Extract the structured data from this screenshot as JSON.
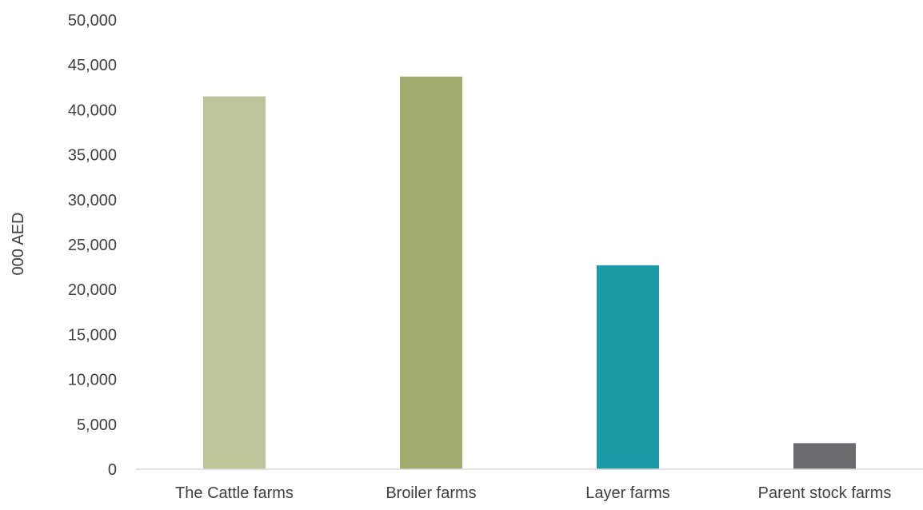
{
  "chart_data": {
    "type": "bar",
    "title": "",
    "xlabel": "",
    "ylabel": "000 AED",
    "categories": [
      "The Cattle farms",
      "Broiler farms",
      "Layer farms",
      "Parent stock farms"
    ],
    "values": [
      41500,
      43700,
      22700,
      2900
    ],
    "colors": [
      "#bec49a",
      "#a2ab6f",
      "#1b9aa6",
      "#6b6b6e"
    ],
    "ylim": [
      0,
      50000
    ],
    "yticks": [
      0,
      5000,
      10000,
      15000,
      20000,
      25000,
      30000,
      35000,
      40000,
      45000,
      50000
    ],
    "ytick_labels": [
      "0",
      "5,000",
      "10,000",
      "15,000",
      "20,000",
      "25,000",
      "30,000",
      "35,000",
      "40,000",
      "45,000",
      "50,000"
    ],
    "grid": false,
    "legend": "none"
  }
}
